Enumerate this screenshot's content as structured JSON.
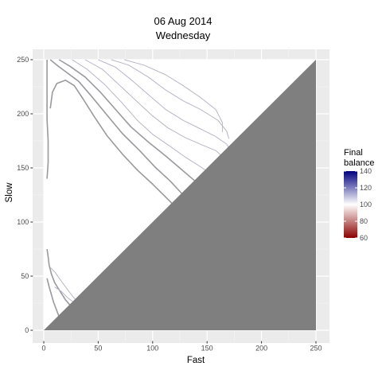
{
  "chart_data": {
    "type": "contour",
    "title": [
      "06 Aug 2014",
      "Wednesday"
    ],
    "xlabel": "Fast",
    "ylabel": "Slow",
    "xlim": [
      -10,
      262
    ],
    "ylim": [
      -10,
      262
    ],
    "x_ticks": [
      0,
      50,
      100,
      150,
      200,
      250
    ],
    "y_ticks": [
      0,
      50,
      100,
      150,
      200,
      250
    ],
    "grid": true,
    "masked_region": "lower-right triangle where Fast >= Slow",
    "legend": {
      "title": [
        "Final",
        "balance"
      ],
      "position": "right",
      "breaks": [
        140,
        120,
        100,
        80,
        60
      ],
      "colors": {
        "low": "#8b0000",
        "mid": "#ffffff",
        "high": "#00007f"
      }
    },
    "contours": [
      {
        "level": 100,
        "points": [
          [
            3,
            250
          ],
          [
            3,
            215
          ],
          [
            3,
            195
          ],
          [
            4,
            175
          ],
          [
            4,
            155
          ],
          [
            3,
            140
          ]
        ]
      },
      {
        "level": 100,
        "points": [
          [
            6,
            205
          ],
          [
            8,
            220
          ],
          [
            12,
            228
          ],
          [
            20,
            231
          ],
          [
            28,
            226
          ],
          [
            36,
            214
          ],
          [
            46,
            198
          ],
          [
            58,
            180
          ],
          [
            72,
            163
          ],
          [
            86,
            148
          ],
          [
            100,
            135
          ],
          [
            112,
            123
          ],
          [
            124,
            111
          ],
          [
            136,
            102
          ]
        ]
      },
      {
        "level": 100,
        "points": [
          [
            6,
            250
          ],
          [
            12,
            245
          ],
          [
            20,
            239
          ],
          [
            32,
            230
          ],
          [
            44,
            216
          ],
          [
            58,
            199
          ],
          [
            72,
            182
          ],
          [
            88,
            166
          ],
          [
            102,
            151
          ],
          [
            116,
            138
          ],
          [
            128,
            125
          ],
          [
            140,
            112
          ],
          [
            152,
            100
          ]
        ]
      },
      {
        "level": 100,
        "points": [
          [
            14,
            250
          ],
          [
            24,
            244
          ],
          [
            38,
            234
          ],
          [
            52,
            220
          ],
          [
            66,
            204
          ],
          [
            80,
            188
          ],
          [
            96,
            174
          ],
          [
            112,
            161
          ],
          [
            126,
            149
          ],
          [
            140,
            137
          ],
          [
            152,
            124
          ],
          [
            162,
            112
          ]
        ]
      },
      {
        "level": 102,
        "points": [
          [
            26,
            250
          ],
          [
            40,
            241
          ],
          [
            56,
            227
          ],
          [
            72,
            210
          ],
          [
            86,
            194
          ],
          [
            100,
            181
          ],
          [
            116,
            170
          ],
          [
            130,
            160
          ],
          [
            144,
            151
          ],
          [
            156,
            143
          ],
          [
            166,
            133
          ]
        ]
      },
      {
        "level": 102,
        "points": [
          [
            38,
            250
          ],
          [
            54,
            241
          ],
          [
            70,
            226
          ],
          [
            86,
            211
          ],
          [
            100,
            198
          ],
          [
            114,
            187
          ],
          [
            130,
            178
          ],
          [
            146,
            171
          ],
          [
            158,
            166
          ],
          [
            166,
            159
          ]
        ]
      },
      {
        "level": 104,
        "points": [
          [
            50,
            250
          ],
          [
            66,
            243
          ],
          [
            82,
            230
          ],
          [
            98,
            216
          ],
          [
            112,
            204
          ],
          [
            128,
            194
          ],
          [
            144,
            186
          ],
          [
            158,
            179
          ],
          [
            168,
            172
          ],
          [
            172,
            165
          ]
        ]
      },
      {
        "level": 104,
        "points": [
          [
            62,
            250
          ],
          [
            78,
            245
          ],
          [
            96,
            234
          ],
          [
            112,
            222
          ],
          [
            128,
            212
          ],
          [
            144,
            204
          ],
          [
            160,
            194
          ],
          [
            168,
            184
          ],
          [
            170,
            177
          ]
        ]
      },
      {
        "level": 106,
        "points": [
          [
            74,
            250
          ],
          [
            92,
            245
          ],
          [
            112,
            236
          ],
          [
            128,
            226
          ],
          [
            144,
            215
          ],
          [
            158,
            204
          ],
          [
            164,
            192
          ],
          [
            164,
            183
          ]
        ]
      },
      {
        "level": 100,
        "points": [
          [
            3,
            48
          ],
          [
            5,
            40
          ],
          [
            7,
            33
          ],
          [
            9,
            26
          ],
          [
            12,
            18
          ],
          [
            15,
            10
          ]
        ]
      },
      {
        "level": 100,
        "points": [
          [
            3,
            75
          ],
          [
            4,
            68
          ],
          [
            5,
            60
          ],
          [
            7,
            52
          ],
          [
            10,
            44
          ],
          [
            15,
            36
          ],
          [
            20,
            28
          ],
          [
            27,
            20
          ]
        ]
      },
      {
        "level": 102,
        "points": [
          [
            6,
            58
          ],
          [
            10,
            54
          ],
          [
            15,
            47
          ],
          [
            20,
            40
          ],
          [
            26,
            32
          ],
          [
            33,
            24
          ],
          [
            38,
            17
          ]
        ]
      },
      {
        "level": 104,
        "points": [
          [
            10,
            40
          ],
          [
            16,
            36
          ],
          [
            22,
            30
          ],
          [
            30,
            24
          ],
          [
            38,
            20
          ],
          [
            44,
            16
          ]
        ]
      }
    ]
  }
}
